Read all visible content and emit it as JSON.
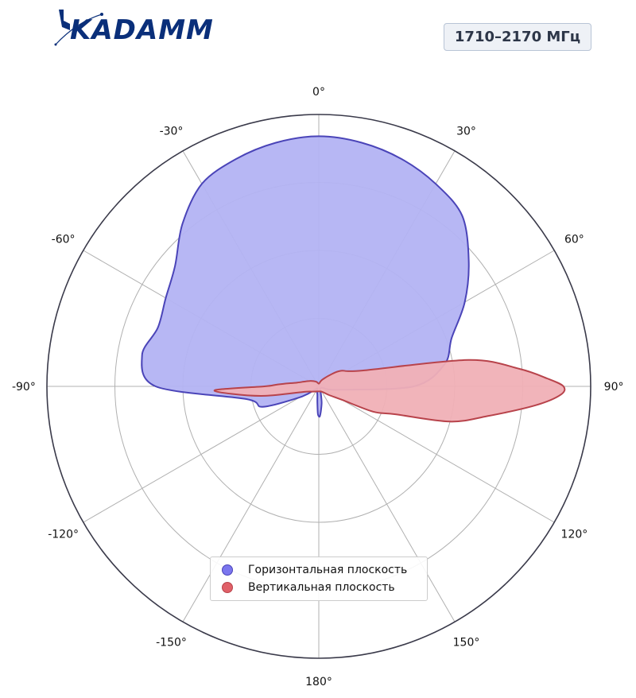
{
  "header": {
    "logo_text": "KADAMM",
    "frequency_badge": "1710–2170 МГц"
  },
  "colors": {
    "horizontal_fill": "#b3b3f3",
    "horizontal_stroke": "#4a44b8",
    "vertical_fill": "#f0b0b6",
    "vertical_stroke": "#b8434b",
    "logo": "#0a2f7a"
  },
  "chart_data": {
    "type": "polar",
    "angle_ticks": [
      "0°",
      "30°",
      "60°",
      "90°",
      "120°",
      "150°",
      "180°",
      "-150°",
      "-120°",
      "-90°",
      "-60°",
      "-30°"
    ],
    "angle_tick_values": [
      0,
      30,
      60,
      90,
      120,
      150,
      180,
      -150,
      -120,
      -90,
      -60,
      -30
    ],
    "radial_rings": 4,
    "radius_range": [
      0,
      1
    ],
    "grid": true,
    "legend_position": "bottom-center",
    "series": [
      {
        "name": "Горизонтальная плоскость",
        "color": "#6f6cf0",
        "angles": [
          0,
          10,
          20,
          30,
          40,
          50,
          60,
          70,
          80,
          90,
          100,
          110,
          120,
          130,
          140,
          150,
          160,
          170,
          175,
          178,
          180,
          182,
          185,
          190,
          200,
          210,
          220,
          230,
          240,
          250,
          260,
          270,
          280,
          290,
          300,
          310,
          320,
          330,
          340,
          350
        ],
        "values": [
          0.92,
          0.91,
          0.89,
          0.86,
          0.82,
          0.72,
          0.62,
          0.52,
          0.47,
          0.35,
          0.07,
          0.02,
          0.01,
          0.01,
          0.01,
          0.01,
          0.02,
          0.06,
          0.09,
          0.11,
          0.11,
          0.1,
          0.06,
          0.03,
          0.02,
          0.01,
          0.01,
          0.02,
          0.08,
          0.22,
          0.27,
          0.6,
          0.66,
          0.63,
          0.65,
          0.69,
          0.78,
          0.86,
          0.89,
          0.91
        ]
      },
      {
        "name": "Вертикальная плоскость",
        "color": "#e06068",
        "angles": [
          0,
          20,
          30,
          45,
          55,
          70,
          80,
          85,
          88,
          90,
          92,
          95,
          100,
          105,
          110,
          115,
          120,
          130,
          140,
          160,
          200,
          230,
          250,
          260,
          265,
          268,
          270,
          272,
          275,
          280,
          300,
          330
        ],
        "values": [
          0.01,
          0.02,
          0.03,
          0.06,
          0.1,
          0.17,
          0.56,
          0.74,
          0.84,
          0.9,
          0.89,
          0.8,
          0.63,
          0.5,
          0.3,
          0.22,
          0.1,
          0.05,
          0.03,
          0.02,
          0.02,
          0.03,
          0.06,
          0.2,
          0.32,
          0.38,
          0.2,
          0.16,
          0.12,
          0.08,
          0.04,
          0.02
        ]
      }
    ]
  }
}
